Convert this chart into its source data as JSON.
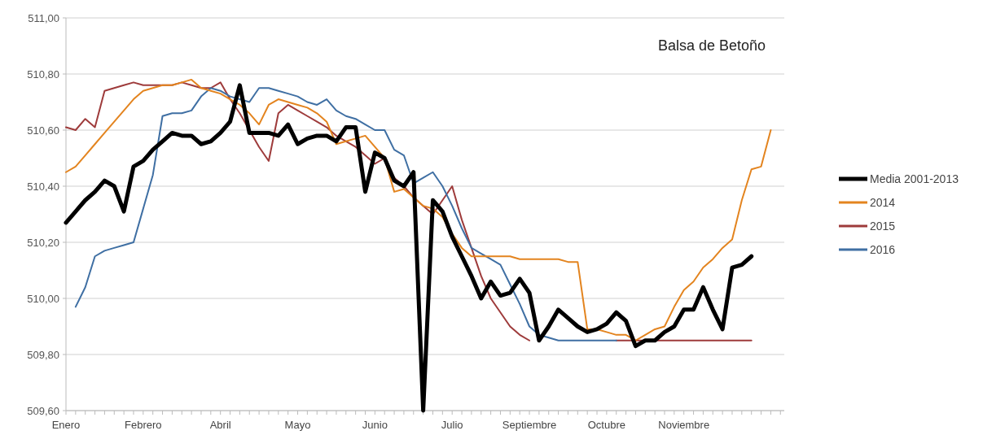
{
  "chart_data": {
    "type": "line",
    "title": "Balsa de Betoño",
    "categories": [
      "Enero",
      null,
      null,
      null,
      null,
      null,
      null,
      null,
      "Febrero",
      null,
      null,
      null,
      null,
      null,
      null,
      null,
      "Abril",
      null,
      null,
      null,
      null,
      null,
      null,
      null,
      "Mayo",
      null,
      null,
      null,
      null,
      null,
      null,
      null,
      "Junio",
      null,
      null,
      null,
      null,
      null,
      null,
      null,
      "Julio",
      null,
      null,
      null,
      null,
      null,
      null,
      null,
      "Septiembre",
      null,
      null,
      null,
      null,
      null,
      null,
      null,
      "Octubre",
      null,
      null,
      null,
      null,
      null,
      null,
      null,
      "Noviembre",
      null,
      null,
      null,
      null,
      null,
      null,
      null,
      null,
      null,
      null
    ],
    "series": [
      {
        "name": "Media 2001-2013",
        "color": "#000000",
        "values": [
          510.27,
          510.31,
          510.35,
          510.38,
          510.42,
          510.4,
          510.31,
          510.47,
          510.49,
          510.53,
          510.56,
          510.59,
          510.58,
          510.58,
          510.55,
          510.56,
          510.59,
          510.63,
          510.76,
          510.59,
          510.59,
          510.59,
          510.58,
          510.62,
          510.55,
          510.57,
          510.58,
          510.58,
          510.56,
          510.61,
          510.61,
          510.38,
          510.52,
          510.5,
          510.42,
          510.4,
          510.45,
          509.6,
          510.35,
          510.31,
          510.22,
          510.15,
          510.08,
          510.0,
          510.06,
          510.01,
          510.02,
          510.07,
          510.02,
          509.85,
          509.9,
          509.96,
          509.93,
          509.9,
          509.88,
          509.89,
          509.91,
          509.95,
          509.92,
          509.83,
          509.85,
          509.85,
          509.88,
          509.9,
          509.96,
          509.96,
          510.04,
          509.96,
          509.89,
          510.11,
          510.12,
          510.15,
          null,
          null,
          null
        ]
      },
      {
        "name": "2014",
        "color": "#e3841f",
        "values": [
          510.45,
          510.47,
          510.51,
          510.55,
          510.59,
          510.63,
          510.67,
          510.71,
          510.74,
          510.75,
          510.76,
          510.76,
          510.77,
          510.78,
          510.75,
          510.74,
          510.73,
          510.71,
          510.69,
          510.66,
          510.62,
          510.69,
          510.71,
          510.7,
          510.69,
          510.68,
          510.66,
          510.63,
          510.55,
          510.56,
          510.57,
          510.58,
          510.54,
          510.5,
          510.38,
          510.39,
          510.36,
          510.33,
          510.32,
          510.29,
          510.23,
          510.18,
          510.15,
          510.15,
          510.15,
          510.15,
          510.15,
          510.14,
          510.14,
          510.14,
          510.14,
          510.14,
          510.13,
          510.13,
          509.89,
          509.89,
          509.88,
          509.87,
          509.87,
          509.85,
          509.87,
          509.89,
          509.9,
          509.97,
          510.03,
          510.06,
          510.11,
          510.14,
          510.18,
          510.21,
          510.35,
          510.46,
          510.47,
          510.6,
          null
        ]
      },
      {
        "name": "2015",
        "color": "#9e3b3b",
        "values": [
          510.61,
          510.6,
          510.64,
          510.61,
          510.74,
          510.75,
          510.76,
          510.77,
          510.76,
          510.76,
          510.76,
          510.76,
          510.77,
          510.76,
          510.75,
          510.75,
          510.77,
          510.71,
          510.66,
          510.6,
          510.54,
          510.49,
          510.66,
          510.69,
          510.67,
          510.65,
          510.63,
          510.61,
          510.58,
          510.56,
          510.54,
          510.51,
          510.48,
          510.5,
          510.43,
          510.4,
          510.36,
          510.33,
          510.3,
          510.35,
          510.4,
          510.28,
          510.18,
          510.08,
          510.0,
          509.95,
          509.9,
          509.87,
          509.85,
          null,
          null,
          null,
          null,
          null,
          null,
          null,
          null,
          509.85,
          509.85,
          509.85,
          509.85,
          509.85,
          509.85,
          509.85,
          509.85,
          509.85,
          509.85,
          509.85,
          509.85,
          509.85,
          509.85,
          509.85,
          null,
          null,
          null
        ]
      },
      {
        "name": "2016",
        "color": "#3f6fa3",
        "values": [
          null,
          509.97,
          510.04,
          510.15,
          510.17,
          510.18,
          510.19,
          510.2,
          510.32,
          510.44,
          510.65,
          510.66,
          510.66,
          510.67,
          510.72,
          510.75,
          510.74,
          510.72,
          510.71,
          510.7,
          510.75,
          510.75,
          510.74,
          510.73,
          510.72,
          510.7,
          510.69,
          510.71,
          510.67,
          510.65,
          510.64,
          510.62,
          510.6,
          510.6,
          510.53,
          510.51,
          510.41,
          510.43,
          510.45,
          510.4,
          510.33,
          510.25,
          510.18,
          510.16,
          510.14,
          510.12,
          510.05,
          509.98,
          509.9,
          509.87,
          509.86,
          509.85,
          509.85,
          509.85,
          509.85,
          509.85,
          509.85,
          509.85,
          null,
          null,
          null,
          null,
          null,
          null,
          null,
          null,
          null,
          null,
          null,
          null,
          null,
          null,
          null,
          null,
          null
        ]
      }
    ],
    "ylim": [
      509.6,
      511.0
    ],
    "yticks": [
      {
        "value": 509.6,
        "label": "509,60"
      },
      {
        "value": 509.8,
        "label": "509,80"
      },
      {
        "value": 510.0,
        "label": "510,00"
      },
      {
        "value": 510.2,
        "label": "510,20"
      },
      {
        "value": 510.4,
        "label": "510,40"
      },
      {
        "value": 510.6,
        "label": "510,60"
      },
      {
        "value": 510.8,
        "label": "510,80"
      },
      {
        "value": 511.0,
        "label": "511,00"
      }
    ],
    "grid": "y",
    "legend": "right",
    "line_style": "solid",
    "marker": "none"
  }
}
